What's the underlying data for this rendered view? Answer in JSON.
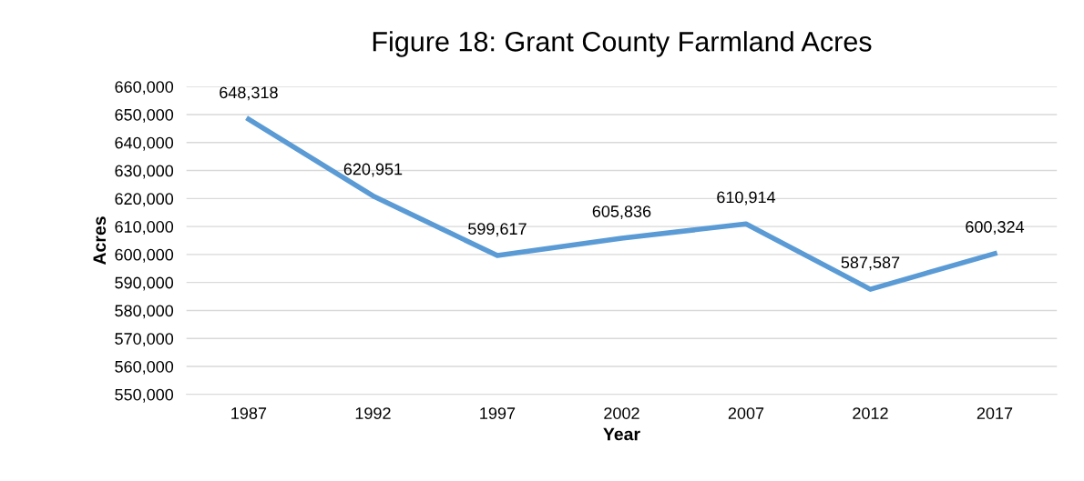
{
  "chart_data": {
    "type": "line",
    "title": "Figure 18: Grant County Farmland Acres",
    "xlabel": "Year",
    "ylabel": "Acres",
    "categories": [
      "1987",
      "1992",
      "1997",
      "2002",
      "2007",
      "2012",
      "2017"
    ],
    "series": [
      {
        "color": "#5b9bd5",
        "values": [
          648318,
          620951,
          599617,
          605836,
          610914,
          587587,
          600324
        ],
        "value_labels": [
          "648,318",
          "620,951",
          "599,617",
          "605,836",
          "610,914",
          "587,587",
          "600,324"
        ]
      }
    ],
    "ylim": [
      550000,
      660000
    ],
    "yticks": [
      {
        "value": 550000,
        "label": "550,000"
      },
      {
        "value": 560000,
        "label": "560,000"
      },
      {
        "value": 570000,
        "label": "570,000"
      },
      {
        "value": 580000,
        "label": "580,000"
      },
      {
        "value": 590000,
        "label": "590,000"
      },
      {
        "value": 600000,
        "label": "600,000"
      },
      {
        "value": 610000,
        "label": "610,000"
      },
      {
        "value": 620000,
        "label": "620,000"
      },
      {
        "value": 630000,
        "label": "630,000"
      },
      {
        "value": 640000,
        "label": "640,000"
      },
      {
        "value": 650000,
        "label": "650,000"
      },
      {
        "value": 660000,
        "label": "660,000"
      }
    ],
    "grid": "y",
    "legend": false,
    "marker": "none",
    "line_style": "solid"
  }
}
